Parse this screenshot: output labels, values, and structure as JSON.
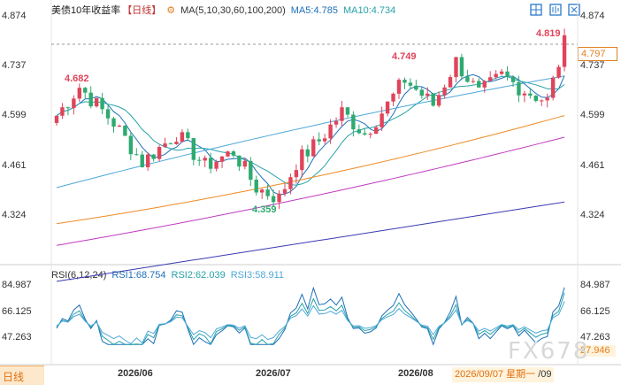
{
  "header": {
    "title": "美债10年收益率",
    "period": "【日线】",
    "ma_label": "MA(5,10,30,60,100,200)",
    "ma5": "MA5:4.785",
    "ma10": "MA10:4.734"
  },
  "rsi_header": {
    "label": "RSI(6,12,24)",
    "rsi1": "RSI1:68.754",
    "rsi2": "RSI2:62.039",
    "rsi3": "RSI3:58.911"
  },
  "price_axis": [
    "4.874",
    "4.737",
    "4.599",
    "4.461",
    "4.324"
  ],
  "rsi_axis": [
    "84.987",
    "66.125",
    "47.263"
  ],
  "last_price": "4.797",
  "rsi_badge": "27.946",
  "annotations": {
    "high1": "4.682",
    "high2": "4.749",
    "high3": "4.819",
    "low1": "4.359"
  },
  "x_labels": [
    "2026/06",
    "2026/07",
    "2026/08"
  ],
  "bottom_bar": {
    "tab": "日线",
    "date": "2026/09/07",
    "weekday": "星期一",
    "suffix": "/09"
  },
  "watermark": "FX678",
  "colors": {
    "up": "#e0445b",
    "down": "#2eaa6f",
    "ma5": "#1d6fb8",
    "ma10": "#27a2a8",
    "ma30": "#4ea8d9",
    "ma60": "#f08a24",
    "ma100": "#c03bc0",
    "ma200": "#3b3bb4"
  },
  "chart_data": {
    "type": "candlestick",
    "y_range": [
      4.32,
      4.874
    ],
    "x_labels": [
      "2026/06",
      "2026/07",
      "2026/08"
    ],
    "annotated_points": [
      {
        "label": "4.682",
        "value": 4.682
      },
      {
        "label": "4.359",
        "value": 4.359
      },
      {
        "label": "4.749",
        "value": 4.749
      },
      {
        "label": "4.819",
        "value": 4.819
      }
    ],
    "last_close": 4.797,
    "ma_values": {
      "MA5": 4.785,
      "MA10": 4.734
    },
    "rsi_values": {
      "RSI1": 68.754,
      "RSI2": 62.039,
      "RSI3": 58.911
    }
  }
}
